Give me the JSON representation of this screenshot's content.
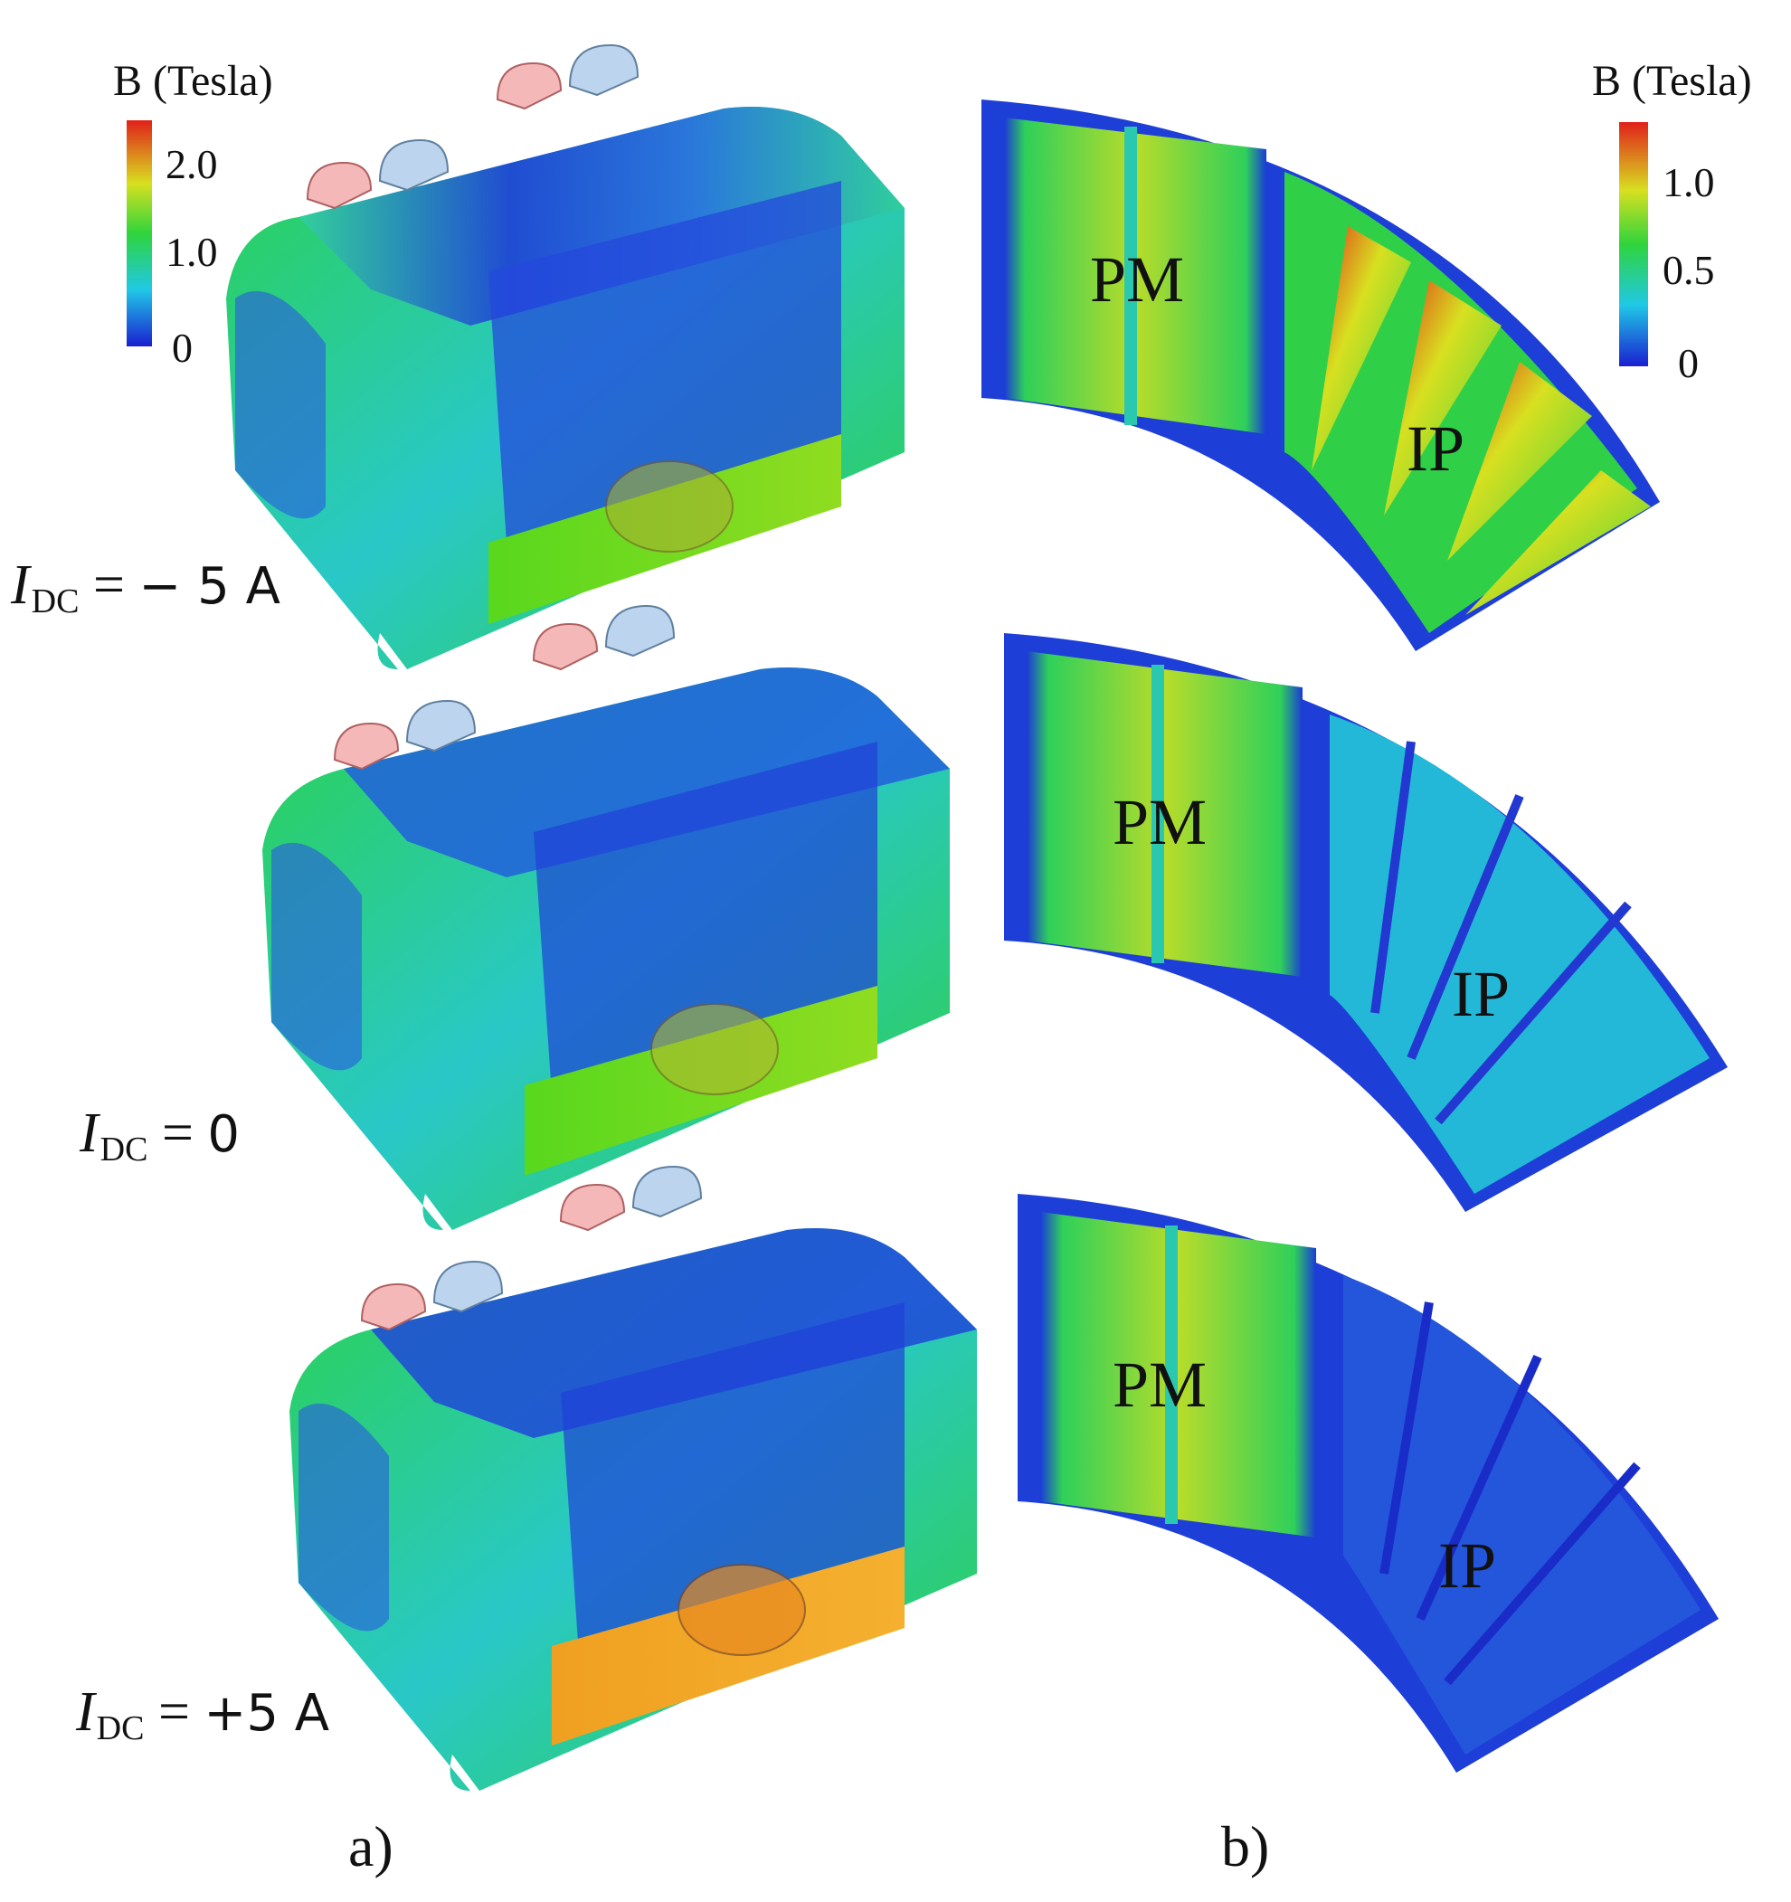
{
  "figure": {
    "panel_a": {
      "caption": "a)",
      "colorbar": {
        "title": "B (Tesla)",
        "ticks": [
          "2.0",
          "1.0",
          "0"
        ]
      },
      "rows": [
        {
          "label_var": "I",
          "label_sub": "DC",
          "label_eq": "=",
          "label_value": "− 5 A"
        },
        {
          "label_var": "I",
          "label_sub": "DC",
          "label_eq": "=",
          "label_value": "0"
        },
        {
          "label_var": "I",
          "label_sub": "DC",
          "label_eq": "=",
          "label_value": "+5 A"
        }
      ]
    },
    "panel_b": {
      "caption": "b)",
      "colorbar": {
        "title": "B (Tesla)",
        "ticks": [
          "1.0",
          "0.5",
          "0"
        ]
      },
      "rows": [
        {
          "pm_label": "PM",
          "ip_label": "IP"
        },
        {
          "pm_label": "PM",
          "ip_label": "IP"
        },
        {
          "pm_label": "PM",
          "ip_label": "IP"
        }
      ]
    },
    "colors": {
      "low": "#1a2fd8",
      "mid_low": "#27c4de",
      "mid": "#35d24a",
      "mid_high": "#c8e020",
      "high": "#e23a14"
    }
  }
}
